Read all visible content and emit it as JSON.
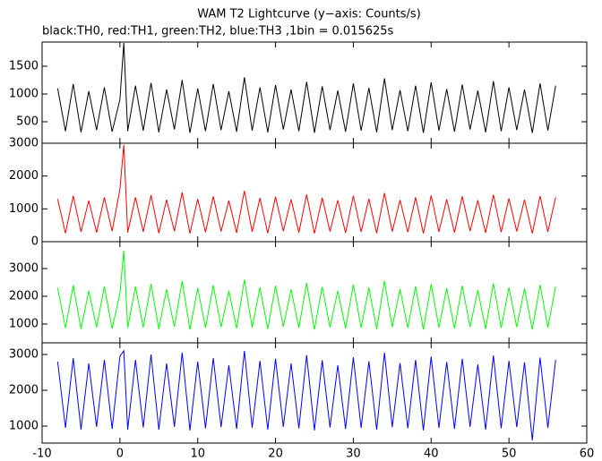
{
  "title": "WAM T2 Lightcurve (y−axis: Counts/s)",
  "subtitle": "black:TH0, red:TH1, green:TH2, blue:TH3 ,1bin = 0.015625s",
  "chart_data": [
    {
      "type": "line",
      "x": [
        -8,
        -7,
        -6,
        -5,
        -4,
        -3,
        -2,
        -1,
        0,
        0.5,
        1,
        2,
        3,
        4,
        5,
        6,
        7,
        8,
        9,
        10,
        11,
        12,
        13,
        14,
        15,
        16,
        17,
        18,
        19,
        20,
        21,
        22,
        23,
        24,
        25,
        26,
        27,
        28,
        29,
        30,
        31,
        32,
        33,
        34,
        35,
        36,
        37,
        38,
        39,
        40,
        41,
        42,
        43,
        44,
        45,
        46,
        47,
        48,
        49,
        50,
        51,
        52,
        53,
        54,
        55,
        56
      ],
      "series": [
        {
          "color": "#000000",
          "values": [
            1100,
            330,
            1180,
            310,
            1050,
            350,
            1120,
            320,
            900,
            1920,
            330,
            1150,
            340,
            1200,
            310,
            1080,
            360,
            1250,
            300,
            1100,
            330,
            1180,
            350,
            1050,
            320,
            1300,
            340,
            1120,
            310,
            1160,
            360,
            1080,
            330,
            1220,
            300,
            1140,
            350,
            1060,
            320,
            1190,
            340,
            1110,
            310,
            1280,
            350,
            1070,
            330,
            1150,
            300,
            1210,
            340,
            1090,
            320,
            1170,
            360,
            1060,
            310,
            1230,
            330,
            1120,
            350,
            1080,
            300,
            1190,
            340,
            1150
          ]
        }
      ],
      "xlim": [
        -10,
        60
      ],
      "xticks": [
        -10,
        0,
        10,
        20,
        30,
        40,
        50,
        60
      ],
      "ylim": [
        113,
        1935
      ],
      "yticks": [
        500,
        1000,
        1500
      ]
    },
    {
      "type": "line",
      "x": [
        -8,
        -7,
        -6,
        -5,
        -4,
        -3,
        -2,
        -1,
        0,
        0.5,
        1,
        2,
        3,
        4,
        5,
        6,
        7,
        8,
        9,
        10,
        11,
        12,
        13,
        14,
        15,
        16,
        17,
        18,
        19,
        20,
        21,
        22,
        23,
        24,
        25,
        26,
        27,
        28,
        29,
        30,
        31,
        32,
        33,
        34,
        35,
        36,
        37,
        38,
        39,
        40,
        41,
        42,
        43,
        44,
        45,
        46,
        47,
        48,
        49,
        50,
        51,
        52,
        53,
        54,
        55,
        56
      ],
      "series": [
        {
          "color": "#ff0000",
          "values": [
            1300,
            260,
            1400,
            300,
            1250,
            280,
            1350,
            320,
            1600,
            2950,
            280,
            1350,
            300,
            1420,
            260,
            1280,
            320,
            1500,
            250,
            1300,
            290,
            1380,
            310,
            1250,
            270,
            1550,
            300,
            1330,
            260,
            1370,
            320,
            1290,
            280,
            1440,
            250,
            1340,
            310,
            1260,
            270,
            1400,
            300,
            1310,
            260,
            1480,
            310,
            1270,
            290,
            1350,
            250,
            1410,
            300,
            1290,
            280,
            1380,
            320,
            1260,
            270,
            1430,
            290,
            1320,
            310,
            1280,
            250,
            1390,
            300,
            1350
          ]
        }
      ],
      "xlim": [
        -10,
        60
      ],
      "xticks": [
        -10,
        0,
        10,
        20,
        30,
        40,
        50,
        60
      ],
      "ylim": [
        0,
        3000
      ],
      "yticks": [
        0,
        1000,
        2000,
        3000
      ]
    },
    {
      "type": "line",
      "x": [
        -8,
        -7,
        -6,
        -5,
        -4,
        -3,
        -2,
        -1,
        0,
        0.5,
        1,
        2,
        3,
        4,
        5,
        6,
        7,
        8,
        9,
        10,
        11,
        12,
        13,
        14,
        15,
        16,
        17,
        18,
        19,
        20,
        21,
        22,
        23,
        24,
        25,
        26,
        27,
        28,
        29,
        30,
        31,
        32,
        33,
        34,
        35,
        36,
        37,
        38,
        39,
        40,
        41,
        42,
        43,
        44,
        45,
        46,
        47,
        48,
        49,
        50,
        51,
        52,
        53,
        54,
        55,
        56
      ],
      "series": [
        {
          "color": "#00ff00",
          "values": [
            2300,
            850,
            2400,
            820,
            2200,
            880,
            2350,
            840,
            2100,
            3650,
            860,
            2350,
            880,
            2450,
            820,
            2250,
            900,
            2550,
            800,
            2300,
            860,
            2400,
            890,
            2200,
            840,
            2600,
            870,
            2320,
            820,
            2380,
            900,
            2250,
            860,
            2480,
            800,
            2340,
            880,
            2200,
            840,
            2420,
            870,
            2310,
            820,
            2550,
            890,
            2260,
            860,
            2350,
            800,
            2440,
            870,
            2290,
            840,
            2380,
            900,
            2220,
            820,
            2470,
            860,
            2320,
            890,
            2280,
            800,
            2410,
            870,
            2350
          ]
        }
      ],
      "xlim": [
        -10,
        60
      ],
      "xticks": [
        -10,
        0,
        10,
        20,
        30,
        40,
        50,
        60
      ],
      "ylim": [
        320,
        3970
      ],
      "yticks": [
        1000,
        2000,
        3000
      ]
    },
    {
      "type": "line",
      "x": [
        -8,
        -7,
        -6,
        -5,
        -4,
        -3,
        -2,
        -1,
        0,
        0.5,
        1,
        2,
        3,
        4,
        5,
        6,
        7,
        8,
        9,
        10,
        11,
        12,
        13,
        14,
        15,
        16,
        17,
        18,
        19,
        20,
        21,
        22,
        23,
        24,
        25,
        26,
        27,
        28,
        29,
        30,
        31,
        32,
        33,
        34,
        35,
        36,
        37,
        38,
        39,
        40,
        41,
        42,
        43,
        44,
        45,
        46,
        47,
        48,
        49,
        50,
        51,
        52,
        53,
        54,
        55,
        56
      ],
      "series": [
        {
          "color": "#0000ff",
          "values": [
            2800,
            950,
            2900,
            900,
            2750,
            980,
            2850,
            920,
            2950,
            3100,
            900,
            2850,
            960,
            3000,
            900,
            2750,
            980,
            3050,
            880,
            2800,
            940,
            2900,
            970,
            2700,
            920,
            3100,
            950,
            2820,
            900,
            2880,
            980,
            2750,
            940,
            2980,
            880,
            2840,
            960,
            2700,
            920,
            2920,
            950,
            2810,
            900,
            3050,
            970,
            2760,
            940,
            2850,
            880,
            2940,
            950,
            2790,
            920,
            2880,
            980,
            2720,
            900,
            2970,
            940,
            2820,
            970,
            2780,
            600,
            2910,
            950,
            2850
          ]
        }
      ],
      "xlim": [
        -10,
        60
      ],
      "xticks": [
        -10,
        0,
        10,
        20,
        30,
        40,
        50,
        60
      ],
      "ylim": [
        525,
        3325
      ],
      "yticks": [
        1000,
        2000,
        3000
      ]
    }
  ]
}
